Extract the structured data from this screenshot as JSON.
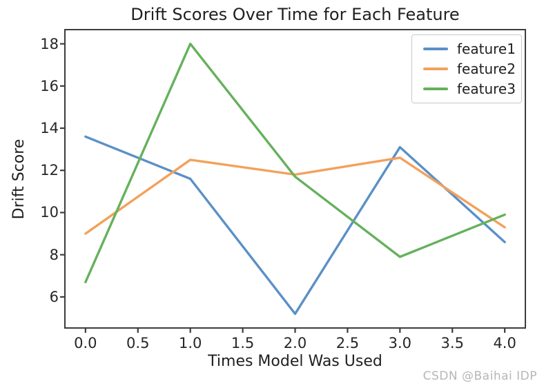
{
  "watermark": {
    "text": "CSDN @Baihai IDP",
    "color": "#b6b6b6"
  },
  "axis_color": "#3c3c3c",
  "chart_data": {
    "type": "line",
    "title": "Drift Scores Over Time for Each Feature",
    "xlabel": "Times Model Was Used",
    "ylabel": "Drift Score",
    "x": [
      0,
      1,
      2,
      3,
      4
    ],
    "series": [
      {
        "name": "feature1",
        "color": "#5a90c7",
        "values": [
          13.6,
          11.6,
          5.2,
          13.1,
          8.6
        ]
      },
      {
        "name": "feature2",
        "color": "#f3a15b",
        "values": [
          9.0,
          12.5,
          11.8,
          12.6,
          9.3
        ]
      },
      {
        "name": "feature3",
        "color": "#65b15c",
        "values": [
          6.7,
          18.0,
          11.7,
          7.9,
          9.9
        ]
      }
    ],
    "xticks": [
      0.0,
      0.5,
      1.0,
      1.5,
      2.0,
      2.5,
      3.0,
      3.5,
      4.0
    ],
    "xtick_labels": [
      "0.0",
      "0.5",
      "1.0",
      "1.5",
      "2.0",
      "2.5",
      "3.0",
      "3.5",
      "4.0"
    ],
    "yticks": [
      6,
      8,
      10,
      12,
      14,
      16,
      18
    ],
    "ytick_labels": [
      "6",
      "8",
      "10",
      "12",
      "14",
      "16",
      "18"
    ],
    "xlim": [
      -0.19,
      4.19
    ],
    "ylim": [
      4.56,
      18.64
    ],
    "grid": false,
    "legend_position": "upper right",
    "line_width": 3.4
  }
}
